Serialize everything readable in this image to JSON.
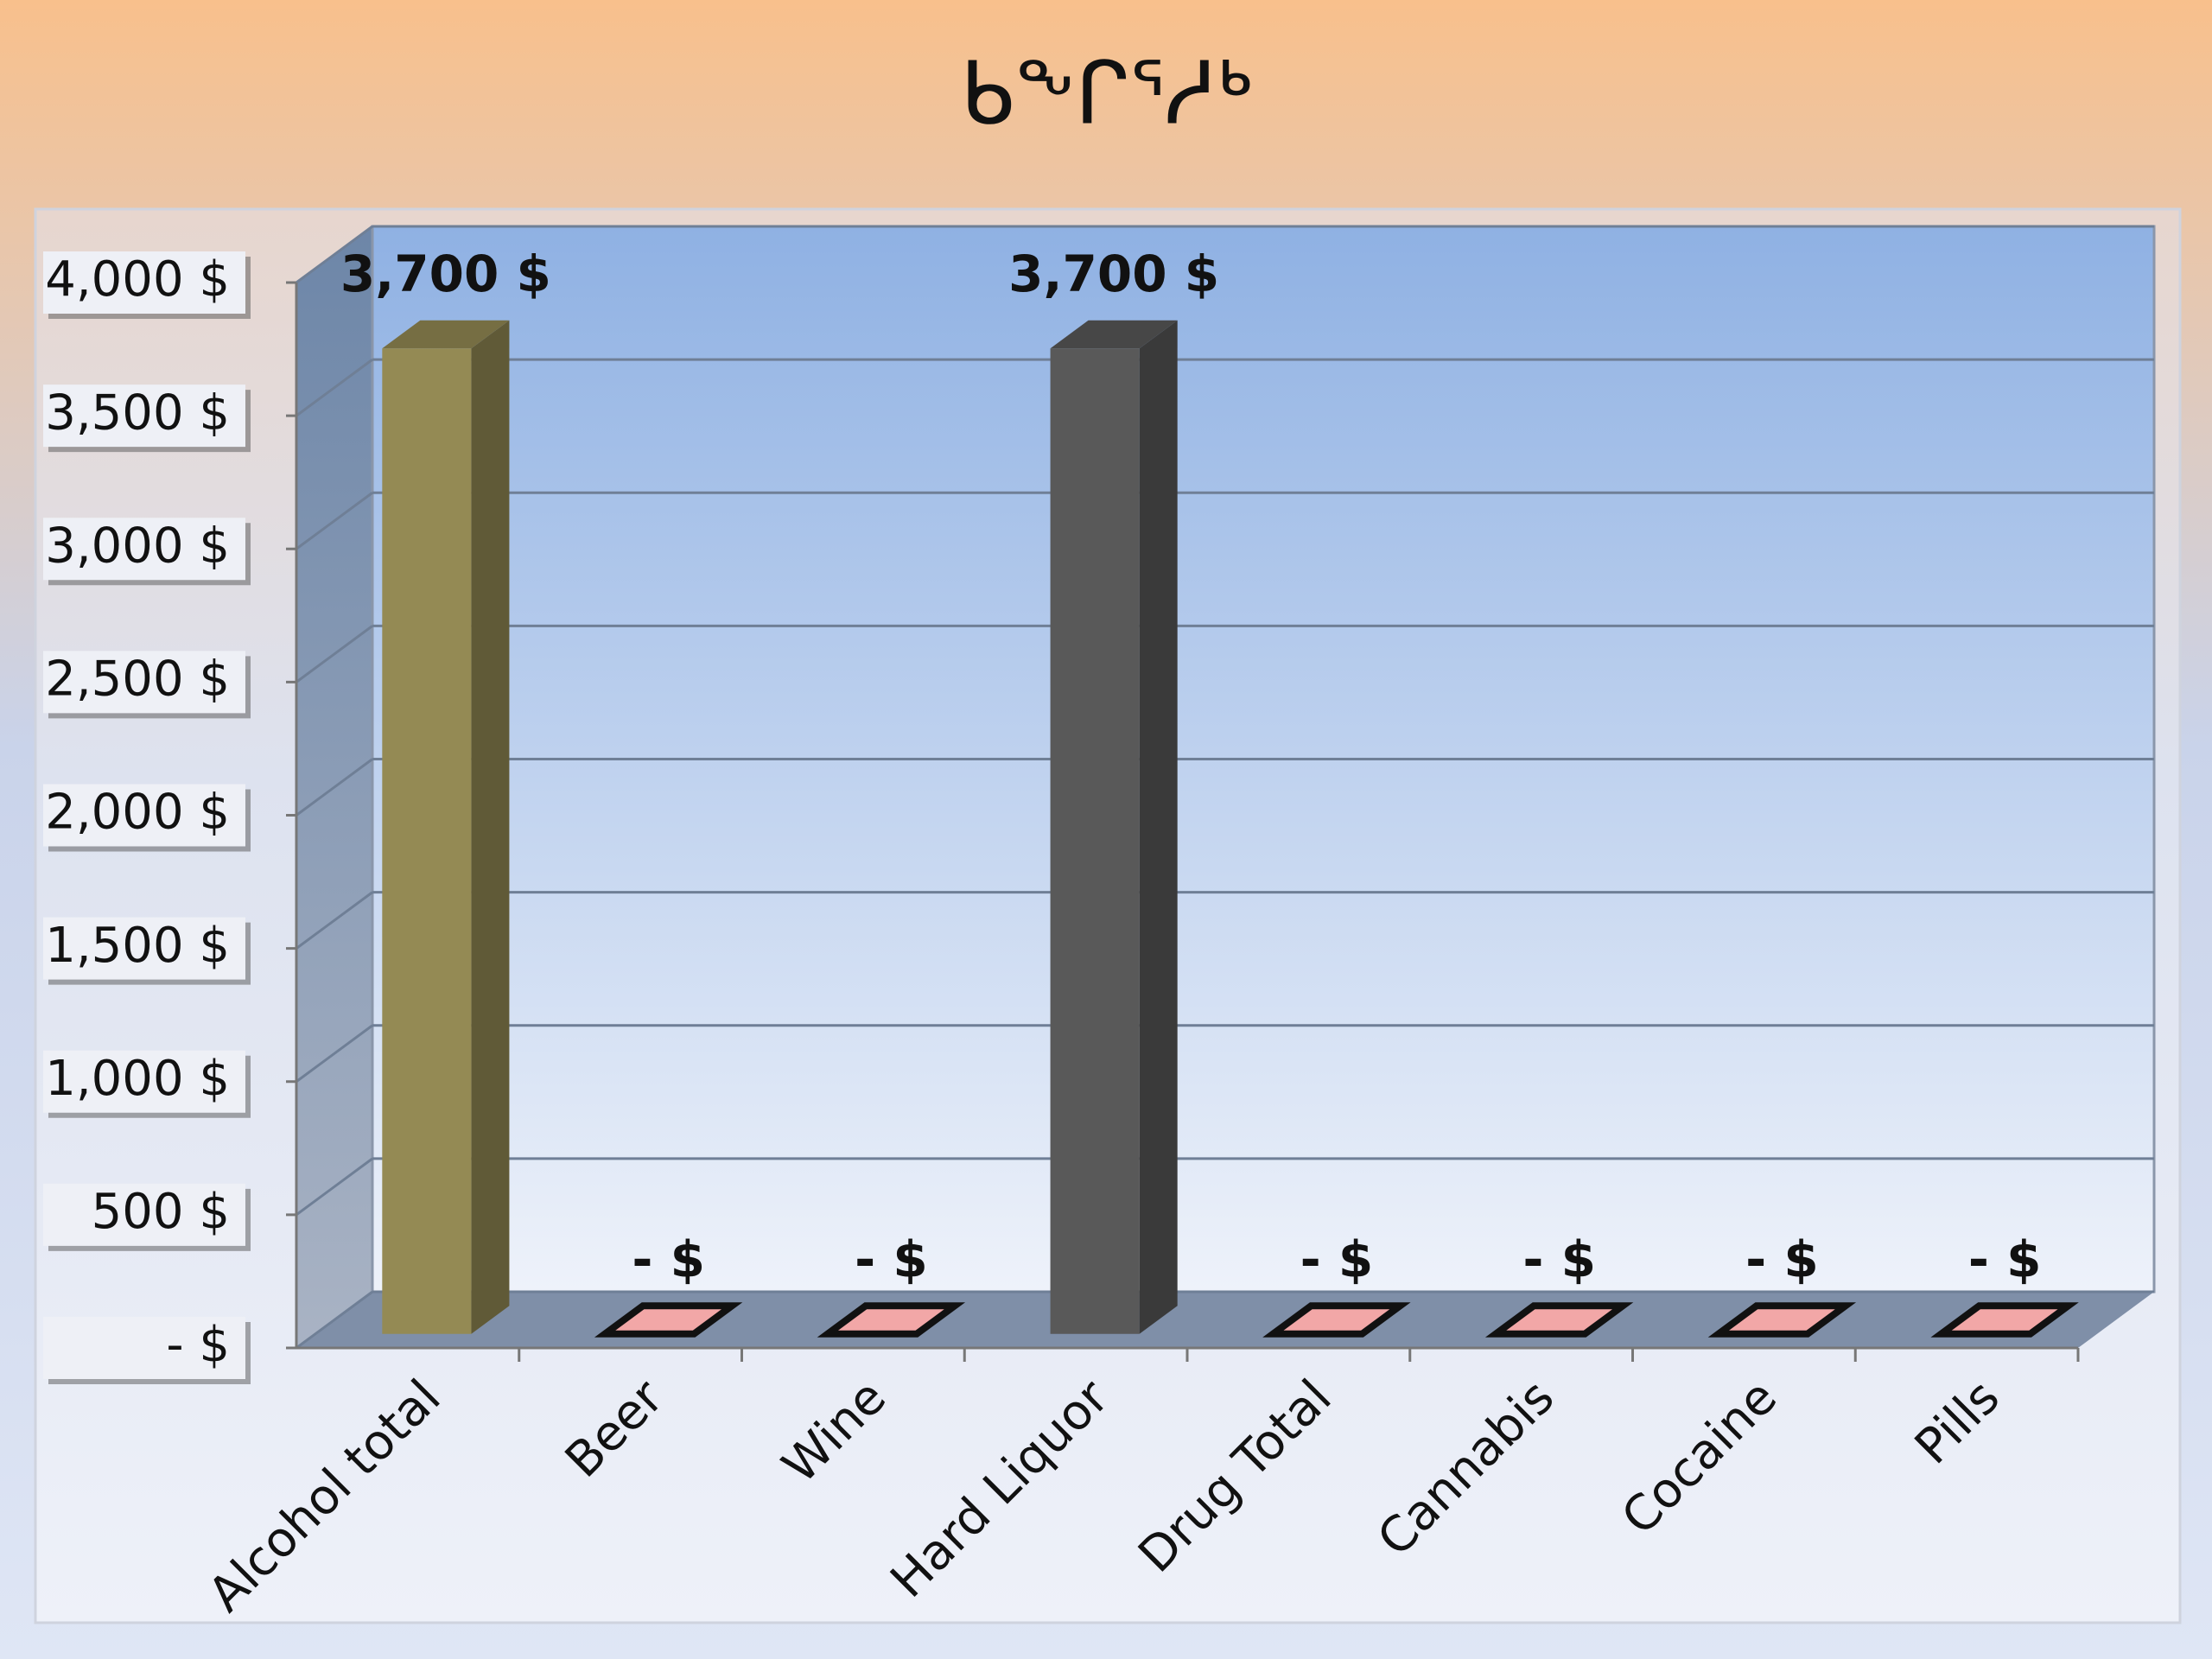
{
  "chart_data": {
    "type": "bar3d",
    "title": "ᑲᖕᒋᕐᓱᒃ",
    "categories": [
      "Alcohol total",
      "Beer",
      "Wine",
      "Hard Liquor",
      "Drug Total",
      "Cannabis",
      "Cocaine",
      "Pills"
    ],
    "values": [
      3700,
      0,
      0,
      3700,
      0,
      0,
      0,
      0
    ],
    "value_labels": [
      "3,700 $",
      "- $",
      "- $",
      "3,700 $",
      "- $",
      "- $",
      "- $",
      "- $"
    ],
    "colors": [
      "#948a54",
      "#f2a7a7",
      "#f2a7a7",
      "#595959",
      "#f2a7a7",
      "#f2a7a7",
      "#f2a7a7",
      "#f2a7a7"
    ],
    "ylim": [
      0,
      4000
    ],
    "yticks": [
      {
        "value": 0,
        "label": "- $"
      },
      {
        "value": 500,
        "label": "500 $"
      },
      {
        "value": 1000,
        "label": "1,000 $"
      },
      {
        "value": 1500,
        "label": "1,500 $"
      },
      {
        "value": 2000,
        "label": "2,000 $"
      },
      {
        "value": 2500,
        "label": "2,500 $"
      },
      {
        "value": 3000,
        "label": "3,000 $"
      },
      {
        "value": 3500,
        "label": "3,500 $"
      },
      {
        "value": 4000,
        "label": "4,000 $"
      }
    ],
    "grid": true
  }
}
